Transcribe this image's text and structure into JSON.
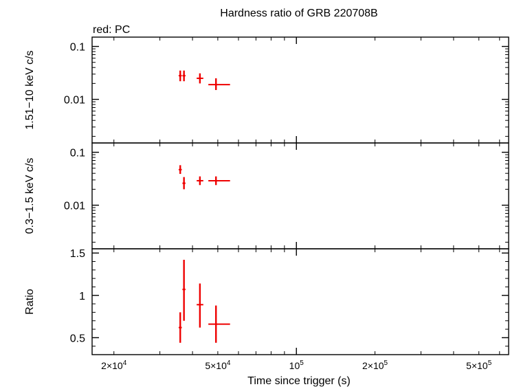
{
  "chart_data": {
    "type": "scatter",
    "title": "Hardness ratio of GRB 220708B",
    "legend_label": "red: PC",
    "xlabel": "Time since trigger (s)",
    "x_scale": "log",
    "xlim": [
      16500,
      650000
    ],
    "x_ticks": [
      {
        "value": 20000,
        "mant": "2×10",
        "exp": "4"
      },
      {
        "value": 50000,
        "mant": "5×10",
        "exp": "4"
      },
      {
        "value": 100000,
        "mant": "10",
        "exp": "5"
      },
      {
        "value": 200000,
        "mant": "2×10",
        "exp": "5"
      },
      {
        "value": 500000,
        "mant": "5×10",
        "exp": "5"
      }
    ],
    "series_color": "#ee0000",
    "panels": [
      {
        "id": "hard",
        "ylabel": "1.51−10 keV c/s",
        "y_scale": "log",
        "ylim": [
          0.0015,
          0.15
        ],
        "y_ticks": [
          {
            "value": 0.1,
            "label": "0.1"
          },
          {
            "value": 0.01,
            "label": "0.01"
          }
        ],
        "points": [
          {
            "x": 35900,
            "xlo": 35400,
            "xhi": 36400,
            "y": 0.028,
            "ylo": 0.022,
            "yhi": 0.035
          },
          {
            "x": 37100,
            "xlo": 36600,
            "xhi": 37600,
            "y": 0.028,
            "ylo": 0.022,
            "yhi": 0.035
          },
          {
            "x": 42700,
            "xlo": 41500,
            "xhi": 44000,
            "y": 0.025,
            "ylo": 0.02,
            "yhi": 0.031
          },
          {
            "x": 49200,
            "xlo": 46000,
            "xhi": 55700,
            "y": 0.019,
            "ylo": 0.015,
            "yhi": 0.025
          }
        ]
      },
      {
        "id": "soft",
        "ylabel": "0.3−1.5 keV c/s",
        "y_scale": "log",
        "ylim": [
          0.0015,
          0.15
        ],
        "y_ticks": [
          {
            "value": 0.1,
            "label": "0.1"
          },
          {
            "value": 0.01,
            "label": "0.01"
          }
        ],
        "points": [
          {
            "x": 35900,
            "xlo": 35400,
            "xhi": 36400,
            "y": 0.047,
            "ylo": 0.039,
            "yhi": 0.057
          },
          {
            "x": 37100,
            "xlo": 36600,
            "xhi": 37600,
            "y": 0.026,
            "ylo": 0.02,
            "yhi": 0.034
          },
          {
            "x": 42700,
            "xlo": 41500,
            "xhi": 44000,
            "y": 0.029,
            "ylo": 0.024,
            "yhi": 0.035
          },
          {
            "x": 49200,
            "xlo": 46000,
            "xhi": 55700,
            "y": 0.029,
            "ylo": 0.024,
            "yhi": 0.035
          }
        ]
      },
      {
        "id": "ratio",
        "ylabel": "Ratio",
        "y_scale": "linear",
        "ylim": [
          0.3,
          1.55
        ],
        "y_ticks": [
          {
            "value": 1.5,
            "label": "1.5"
          },
          {
            "value": 1,
            "label": "1"
          },
          {
            "value": 0.5,
            "label": "0.5"
          }
        ],
        "points": [
          {
            "x": 35900,
            "xlo": 35400,
            "xhi": 36400,
            "y": 0.62,
            "ylo": 0.44,
            "yhi": 0.8
          },
          {
            "x": 37100,
            "xlo": 36600,
            "xhi": 37600,
            "y": 1.07,
            "ylo": 0.7,
            "yhi": 1.42
          },
          {
            "x": 42700,
            "xlo": 41500,
            "xhi": 44000,
            "y": 0.89,
            "ylo": 0.62,
            "yhi": 1.14
          },
          {
            "x": 49200,
            "xlo": 46000,
            "xhi": 55700,
            "y": 0.66,
            "ylo": 0.44,
            "yhi": 0.88
          }
        ]
      }
    ]
  }
}
